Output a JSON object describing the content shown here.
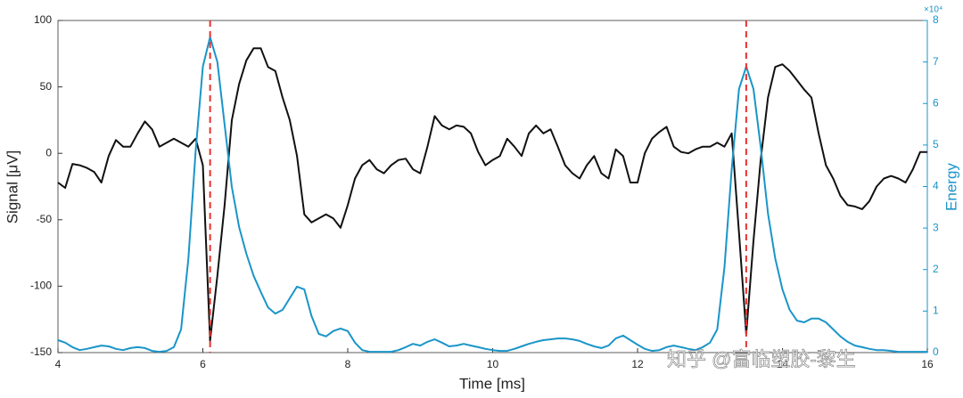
{
  "chart_data": {
    "type": "line",
    "xlabel": "Time [ms]",
    "ylabel": "Signal [μV]",
    "y2label": "Energy",
    "y2multiplier": "×10⁴",
    "watermark": "知乎 @富临塑胶-黎生",
    "xlim": [
      4,
      16
    ],
    "xticks": [
      4,
      6,
      8,
      10,
      12,
      14,
      16
    ],
    "ylim": [
      -150,
      100
    ],
    "yticks": [
      -150,
      -100,
      -50,
      0,
      50,
      100
    ],
    "y2lim": [
      0,
      8
    ],
    "y2ticks": [
      0,
      1,
      2,
      3,
      4,
      5,
      6,
      7,
      8
    ],
    "vlines": [
      6.1,
      13.5
    ],
    "vline_color": "#e8312f",
    "x": [
      4.0,
      4.1,
      4.2,
      4.3,
      4.4,
      4.5,
      4.6,
      4.7,
      4.8,
      4.9,
      5.0,
      5.1,
      5.2,
      5.3,
      5.4,
      5.5,
      5.6,
      5.7,
      5.8,
      5.9,
      6.0,
      6.1,
      6.2,
      6.3,
      6.4,
      6.5,
      6.6,
      6.7,
      6.8,
      6.9,
      7.0,
      7.1,
      7.2,
      7.3,
      7.4,
      7.5,
      7.6,
      7.7,
      7.8,
      7.9,
      8.0,
      8.1,
      8.2,
      8.3,
      8.4,
      8.5,
      8.6,
      8.7,
      8.8,
      8.9,
      9.0,
      9.1,
      9.2,
      9.3,
      9.4,
      9.5,
      9.6,
      9.7,
      9.8,
      9.9,
      10.0,
      10.1,
      10.2,
      10.3,
      10.4,
      10.5,
      10.6,
      10.7,
      10.8,
      10.9,
      11.0,
      11.1,
      11.2,
      11.3,
      11.4,
      11.5,
      11.6,
      11.7,
      11.8,
      11.9,
      12.0,
      12.1,
      12.2,
      12.3,
      12.4,
      12.5,
      12.6,
      12.7,
      12.8,
      12.9,
      13.0,
      13.1,
      13.2,
      13.3,
      13.4,
      13.5,
      13.6,
      13.7,
      13.8,
      13.9,
      14.0,
      14.1,
      14.2,
      14.3,
      14.4,
      14.5,
      14.6,
      14.7,
      14.8,
      14.9,
      15.0,
      15.1,
      15.2,
      15.3,
      15.4,
      15.5,
      15.6,
      15.7,
      15.8,
      15.9,
      16.0
    ],
    "series": [
      {
        "color": "#111111",
        "values": [
          -22,
          -26,
          -8,
          -9,
          -11,
          -14,
          -22,
          -2,
          10,
          5,
          5,
          15,
          24,
          18,
          5,
          8,
          11,
          8,
          5,
          11,
          -9,
          -141,
          -92,
          -39,
          25,
          52,
          70,
          79,
          79,
          65,
          62,
          42,
          25,
          -2,
          -46,
          -52,
          -49,
          -46,
          -49,
          -56,
          -39,
          -19,
          -9,
          -5,
          -12,
          -15,
          -9,
          -5,
          -4,
          -12,
          -15,
          5,
          28,
          21,
          18,
          21,
          20,
          15,
          1,
          -9,
          -5,
          -2,
          11,
          5,
          -2,
          15,
          21,
          15,
          18,
          5,
          -9,
          -15,
          -19,
          -9,
          -2,
          -15,
          -19,
          3,
          -2,
          -22,
          -22,
          0,
          11,
          16,
          20,
          5,
          1,
          0,
          3,
          5,
          5,
          8,
          5,
          15,
          -60,
          -136,
          -66,
          -5,
          42,
          65,
          67,
          62,
          55,
          48,
          42,
          15,
          -9,
          -19,
          -32,
          -39,
          -40,
          -42,
          -36,
          -25,
          -19,
          -17,
          -19,
          -22,
          -12,
          1,
          1
        ]
      },
      {
        "color": "#1a95c8",
        "axis": "y2",
        "values": [
          0.3,
          0.24,
          0.13,
          0.06,
          0.09,
          0.13,
          0.17,
          0.15,
          0.09,
          0.06,
          0.11,
          0.13,
          0.11,
          0.04,
          0.02,
          0.04,
          0.13,
          0.56,
          2.27,
          4.85,
          6.89,
          7.6,
          7.0,
          5.49,
          3.99,
          3.03,
          2.38,
          1.85,
          1.46,
          1.09,
          0.94,
          1.03,
          1.31,
          1.59,
          1.52,
          0.88,
          0.45,
          0.39,
          0.52,
          0.58,
          0.52,
          0.24,
          0.06,
          0.02,
          0.02,
          0.02,
          0.02,
          0.06,
          0.13,
          0.21,
          0.17,
          0.26,
          0.32,
          0.24,
          0.15,
          0.17,
          0.21,
          0.17,
          0.13,
          0.09,
          0.06,
          0.04,
          0.04,
          0.09,
          0.15,
          0.21,
          0.26,
          0.3,
          0.32,
          0.34,
          0.34,
          0.32,
          0.28,
          0.21,
          0.15,
          0.11,
          0.17,
          0.34,
          0.41,
          0.3,
          0.19,
          0.09,
          0.04,
          0.06,
          0.13,
          0.17,
          0.13,
          0.09,
          0.06,
          0.13,
          0.24,
          0.56,
          2.06,
          4.42,
          6.35,
          6.89,
          6.35,
          4.96,
          3.35,
          2.27,
          1.52,
          1.03,
          0.77,
          0.73,
          0.82,
          0.82,
          0.73,
          0.56,
          0.39,
          0.26,
          0.17,
          0.13,
          0.09,
          0.06,
          0.06,
          0.04,
          0.02,
          0.02,
          0.02,
          0.02,
          0.02
        ]
      }
    ]
  }
}
